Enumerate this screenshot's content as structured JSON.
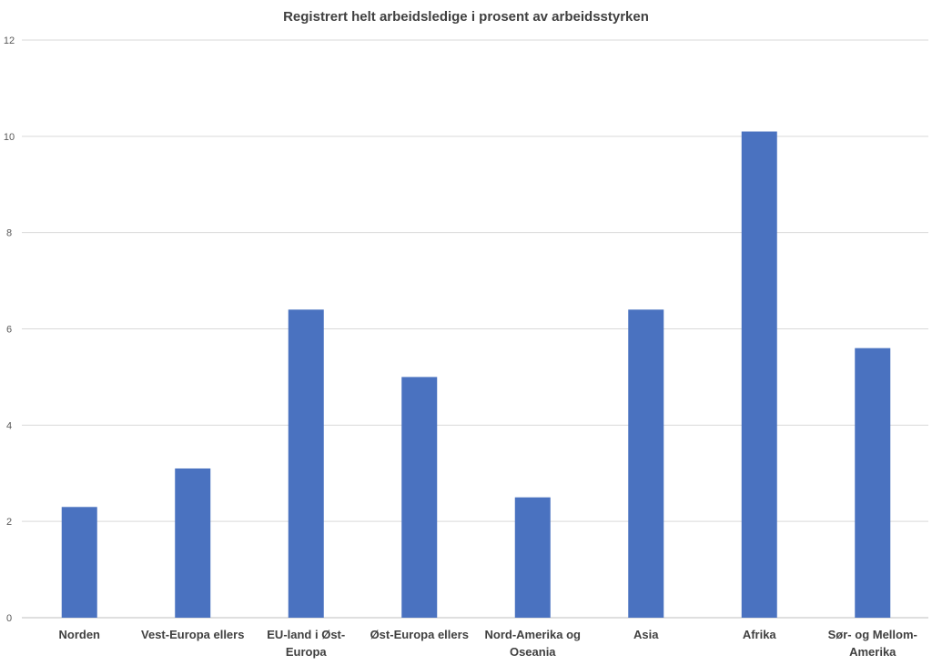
{
  "chart_data": {
    "type": "bar",
    "title": "Registrert helt arbeidsledige i prosent av arbeidsstyrken",
    "xlabel": "",
    "ylabel": "",
    "categories": [
      "Norden",
      "Vest-Europa ellers",
      "EU-land i Øst-Europa",
      "Øst-Europa ellers",
      "Nord-Amerika og Oseania",
      "Asia",
      "Afrika",
      "Sør- og Mellom-Amerika"
    ],
    "category_lines": [
      [
        "Norden"
      ],
      [
        "Vest-Europa ellers"
      ],
      [
        "EU-land i Øst-",
        "Europa"
      ],
      [
        "Øst-Europa ellers"
      ],
      [
        "Nord-Amerika og",
        "Oseania"
      ],
      [
        "Asia"
      ],
      [
        "Afrika"
      ],
      [
        "Sør- og Mellom-",
        "Amerika"
      ]
    ],
    "values": [
      2.3,
      3.1,
      6.4,
      5.0,
      2.5,
      6.4,
      10.1,
      5.6
    ],
    "ylim": [
      0,
      12
    ],
    "yticks": [
      "0",
      "2",
      "4",
      "6",
      "8",
      "10",
      "12"
    ],
    "grid": true,
    "legend": "none",
    "colors": {
      "bar": "#4a72c0",
      "grid": "#d9d9d9",
      "axis": "#bfbfbf"
    }
  }
}
